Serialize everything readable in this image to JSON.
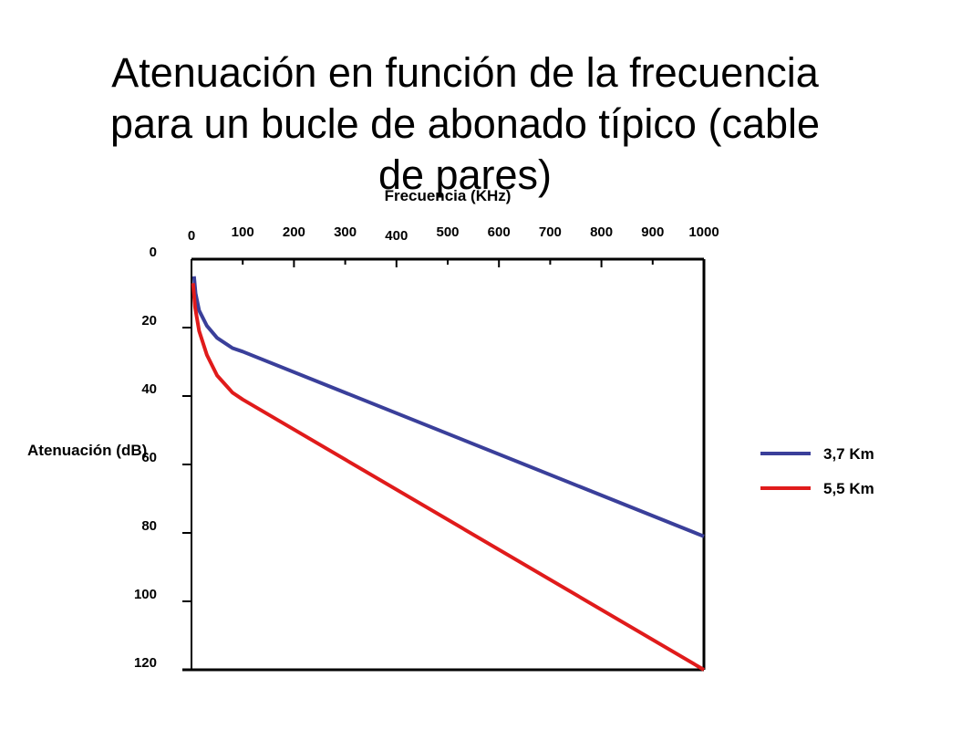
{
  "chart_data": {
    "type": "line",
    "title_lines": [
      "Atenuación en función de la frecuencia",
      "para un bucle de abonado típico (cable",
      "de pares)"
    ],
    "xlabel": "Frecuencia (KHz)",
    "ylabel": "Atenuación (dB)",
    "x_ticks": [
      0,
      100,
      200,
      300,
      400,
      500,
      600,
      700,
      800,
      900,
      1000
    ],
    "x_tick_labels": [
      "0",
      "100",
      "200",
      "300",
      "400",
      "500",
      "600",
      "700",
      "800",
      "900",
      "1000"
    ],
    "y_ticks": [
      0,
      20,
      40,
      60,
      80,
      100,
      120
    ],
    "y_tick_labels": [
      "0",
      "20",
      "40",
      "60",
      "80",
      "100",
      "120"
    ],
    "xlim": [
      0,
      1000
    ],
    "ylim": [
      0,
      120
    ],
    "y_inverted": true,
    "grid": false,
    "legend_position": "right",
    "series": [
      {
        "name": "3,7 Km",
        "color": "#3a3f9a",
        "points": [
          [
            5,
            5
          ],
          [
            8,
            10
          ],
          [
            15,
            15
          ],
          [
            30,
            19.5
          ],
          [
            50,
            23
          ],
          [
            80,
            26
          ],
          [
            100,
            27
          ],
          [
            1000,
            81
          ]
        ]
      },
      {
        "name": "5,5 Km",
        "color": "#e01b1b",
        "points": [
          [
            3,
            7
          ],
          [
            7,
            14
          ],
          [
            15,
            21
          ],
          [
            30,
            28
          ],
          [
            50,
            34
          ],
          [
            80,
            39
          ],
          [
            100,
            41
          ],
          [
            1000,
            120
          ]
        ]
      }
    ]
  }
}
